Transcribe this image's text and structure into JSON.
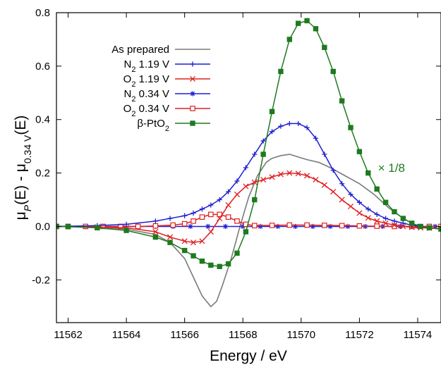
{
  "chart_data": {
    "type": "line",
    "xlabel": "Energy / eV",
    "ylabel": "μP(E) - μ0.34 V(E)",
    "ylabel_parts": {
      "mu1": "μ",
      "sub1": "P",
      "mid": "(E) - μ",
      "sub2": "0.34 V",
      "end": "(E)"
    },
    "xlim": [
      11561.6,
      11574.8
    ],
    "ylim": [
      -0.36,
      0.8
    ],
    "xticks": [
      11562,
      11564,
      11566,
      11568,
      11570,
      11572,
      11574
    ],
    "yticks": [
      -0.2,
      0.0,
      0.2,
      0.4,
      0.6,
      0.8
    ],
    "ytick_labels": [
      "-0.2",
      "0.0",
      "0.2",
      "0.4",
      "0.6",
      "0.8"
    ],
    "grid": false,
    "legend_position": "top-left",
    "annotation": {
      "text": "× 1/8",
      "color": "#1e7a1e",
      "x": 11573.1,
      "y": 0.22
    },
    "series": [
      {
        "name": "As prepared",
        "legend_main": "As prepared",
        "legend_sub": "",
        "legend_rest": "",
        "color": "#7a7a7a",
        "marker": "none",
        "x": [
          11561.6,
          11563,
          11564,
          11565,
          11565.5,
          11566,
          11566.3,
          11566.6,
          11566.9,
          11567.1,
          11567.3,
          11567.6,
          11567.9,
          11568.2,
          11568.5,
          11568.8,
          11569.0,
          11569.3,
          11569.6,
          11569.9,
          11570.2,
          11570.6,
          11571.0,
          11571.5,
          11572.0,
          11572.5,
          11573.0,
          11573.5,
          11574.0,
          11574.8
        ],
        "y": [
          0.0,
          -0.002,
          -0.01,
          -0.03,
          -0.06,
          -0.12,
          -0.19,
          -0.26,
          -0.3,
          -0.28,
          -0.22,
          -0.12,
          0.0,
          0.11,
          0.19,
          0.24,
          0.255,
          0.265,
          0.27,
          0.26,
          0.25,
          0.24,
          0.22,
          0.19,
          0.16,
          0.12,
          0.07,
          0.03,
          0.0,
          -0.01
        ]
      },
      {
        "name": "N2 1.19 V",
        "legend_main": "N",
        "legend_sub": "2",
        "legend_rest": " 1.19 V",
        "color": "#1f1fd1",
        "marker": "plus",
        "x": [
          11561.6,
          11562,
          11563,
          11564,
          11565,
          11565.5,
          11566,
          11566.3,
          11566.6,
          11566.9,
          11567.2,
          11567.5,
          11567.8,
          11568.1,
          11568.4,
          11568.7,
          11569,
          11569.3,
          11569.6,
          11569.9,
          11570.2,
          11570.5,
          11570.8,
          11571.1,
          11571.4,
          11571.7,
          11572,
          11572.3,
          11572.6,
          11572.9,
          11573.2,
          11573.5,
          11573.8,
          11574.1,
          11574.4,
          11574.8
        ],
        "y": [
          0.0,
          0.001,
          0.003,
          0.008,
          0.02,
          0.03,
          0.04,
          0.05,
          0.065,
          0.08,
          0.1,
          0.13,
          0.17,
          0.22,
          0.27,
          0.32,
          0.355,
          0.375,
          0.385,
          0.385,
          0.37,
          0.33,
          0.27,
          0.21,
          0.16,
          0.12,
          0.09,
          0.065,
          0.045,
          0.03,
          0.02,
          0.012,
          0.005,
          0.0,
          -0.005,
          -0.01
        ]
      },
      {
        "name": "O2 1.19 V",
        "legend_main": "O",
        "legend_sub": "2",
        "legend_rest": " 1.19 V",
        "color": "#e02020",
        "marker": "x",
        "x": [
          11561.6,
          11562,
          11563,
          11564,
          11565,
          11565.5,
          11566,
          11566.3,
          11566.6,
          11566.9,
          11567.2,
          11567.5,
          11567.8,
          11568.1,
          11568.4,
          11568.7,
          11569,
          11569.3,
          11569.6,
          11569.9,
          11570.2,
          11570.5,
          11570.8,
          11571.1,
          11571.4,
          11571.7,
          11572,
          11572.3,
          11572.6,
          11572.9,
          11573.2,
          11573.5,
          11573.8,
          11574.1,
          11574.4,
          11574.8
        ],
        "y": [
          0.0,
          0.0,
          -0.002,
          -0.005,
          -0.02,
          -0.04,
          -0.055,
          -0.06,
          -0.055,
          -0.02,
          0.03,
          0.08,
          0.12,
          0.15,
          0.165,
          0.175,
          0.185,
          0.195,
          0.2,
          0.198,
          0.19,
          0.175,
          0.155,
          0.13,
          0.1,
          0.075,
          0.05,
          0.032,
          0.02,
          0.012,
          0.005,
          0.0,
          -0.003,
          -0.005,
          -0.006,
          -0.008
        ]
      },
      {
        "name": "N2 0.34 V",
        "legend_main": "N",
        "legend_sub": "2",
        "legend_rest": " 0.34 V",
        "color": "#1f1fd1",
        "marker": "star",
        "x": [
          11561.6,
          11562,
          11562.6,
          11563.2,
          11563.8,
          11564.4,
          11565,
          11565.6,
          11566.2,
          11566.8,
          11567.4,
          11568,
          11568.6,
          11569.2,
          11569.8,
          11570.4,
          11571,
          11571.6,
          11572.2,
          11572.8,
          11573.4,
          11574,
          11574.6
        ],
        "y": [
          0.0,
          0.0,
          0.0,
          0.0,
          0.0,
          0.0,
          0.0,
          0.0,
          0.0,
          0.0,
          0.0,
          0.0,
          0.0,
          0.0,
          0.0,
          0.0,
          0.0,
          0.0,
          0.0,
          0.0,
          0.0,
          0.0,
          0.0
        ]
      },
      {
        "name": "O2 0.34 V",
        "legend_main": "O",
        "legend_sub": "2",
        "legend_rest": " 0.34 V",
        "color": "#e02020",
        "marker": "square-open",
        "x": [
          11561.6,
          11562,
          11562.6,
          11563.2,
          11563.8,
          11564.4,
          11565,
          11565.6,
          11566,
          11566.3,
          11566.6,
          11566.9,
          11567.2,
          11567.5,
          11567.8,
          11568.1,
          11568.4,
          11569,
          11569.6,
          11570.2,
          11570.8,
          11571.4,
          11572,
          11572.6,
          11573.2,
          11573.8,
          11574.4,
          11574.8
        ],
        "y": [
          0.0,
          0.0,
          0.0,
          0.0,
          0.0,
          0.0,
          0.002,
          0.005,
          0.01,
          0.02,
          0.035,
          0.045,
          0.045,
          0.035,
          0.02,
          0.008,
          0.003,
          0.004,
          0.005,
          0.005,
          0.004,
          0.003,
          0.002,
          0.001,
          0.0,
          0.0,
          0.0,
          0.0
        ]
      },
      {
        "name": "β-PtO2",
        "legend_main": "β-PtO",
        "legend_sub": "2",
        "legend_rest": "",
        "color": "#1e7a1e",
        "marker": "square-filled",
        "x": [
          11561.6,
          11562,
          11563,
          11564,
          11565,
          11565.5,
          11566,
          11566.3,
          11566.6,
          11566.9,
          11567.2,
          11567.5,
          11567.8,
          11568.1,
          11568.4,
          11568.7,
          11569,
          11569.3,
          11569.6,
          11569.9,
          11570.2,
          11570.5,
          11570.8,
          11571.1,
          11571.4,
          11571.7,
          11572,
          11572.3,
          11572.6,
          11572.9,
          11573.2,
          11573.5,
          11573.8,
          11574.1,
          11574.4,
          11574.8
        ],
        "y": [
          0.0,
          -0.001,
          -0.005,
          -0.015,
          -0.04,
          -0.06,
          -0.09,
          -0.11,
          -0.13,
          -0.145,
          -0.15,
          -0.14,
          -0.1,
          -0.02,
          0.1,
          0.27,
          0.43,
          0.58,
          0.7,
          0.76,
          0.77,
          0.74,
          0.67,
          0.58,
          0.47,
          0.37,
          0.28,
          0.2,
          0.14,
          0.09,
          0.055,
          0.03,
          0.012,
          0.0,
          -0.005,
          -0.01
        ]
      }
    ]
  }
}
